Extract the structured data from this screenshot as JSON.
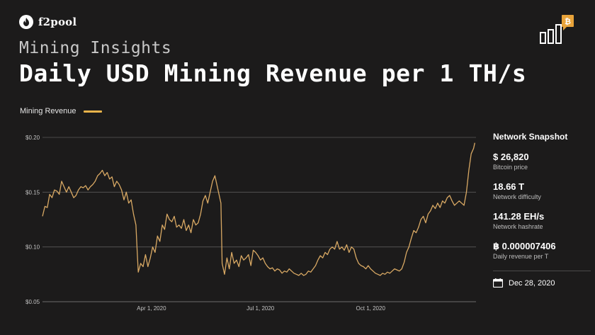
{
  "brand": {
    "name": "f2pool",
    "logo_icon": "flame-logo-icon"
  },
  "header": {
    "subtitle": "Mining Insights",
    "title": "Daily USD Mining Revenue per 1 TH/s",
    "corner_icon": "bar-chart-bitcoin-icon"
  },
  "colors": {
    "background": "#1c1b1b",
    "line": "#d9a964",
    "legend": "#e8b34a",
    "grid": "#5a5a5a"
  },
  "snapshot": {
    "heading": "Network Snapshot",
    "stats": [
      {
        "value": "$ 26,820",
        "label": "Bitcoin price"
      },
      {
        "value": "18.66 T",
        "label": "Network difficulty"
      },
      {
        "value": "141.28 EH/s",
        "label": "Network hashrate"
      },
      {
        "value": "฿ 0.000007406",
        "label": "Daily revenue per T"
      }
    ],
    "date": "Dec 28, 2020",
    "date_icon": "calendar-icon"
  },
  "chart_data": {
    "type": "line",
    "series": [
      {
        "name": "Mining Revenue"
      }
    ],
    "ylim": [
      0.05,
      0.2
    ],
    "y_ticks": [
      0.05,
      0.1,
      0.15,
      0.2
    ],
    "y_tick_labels": [
      "$0.05",
      "$0.10",
      "$0.15",
      "$0.20"
    ],
    "x_tick_labels": [
      "Apr 1, 2020",
      "Jul 1, 2020",
      "Oct 1, 2020"
    ],
    "x_tick_days": [
      91,
      182,
      274
    ],
    "x_range_days": [
      0,
      362
    ],
    "grid": "horizontal",
    "legend": "top-left",
    "points": [
      [
        0,
        0.128
      ],
      [
        2,
        0.137
      ],
      [
        4,
        0.136
      ],
      [
        6,
        0.148
      ],
      [
        8,
        0.145
      ],
      [
        10,
        0.152
      ],
      [
        12,
        0.151
      ],
      [
        14,
        0.148
      ],
      [
        16,
        0.16
      ],
      [
        18,
        0.155
      ],
      [
        20,
        0.15
      ],
      [
        22,
        0.155
      ],
      [
        24,
        0.15
      ],
      [
        26,
        0.145
      ],
      [
        28,
        0.147
      ],
      [
        30,
        0.152
      ],
      [
        32,
        0.155
      ],
      [
        34,
        0.154
      ],
      [
        36,
        0.156
      ],
      [
        38,
        0.152
      ],
      [
        40,
        0.155
      ],
      [
        42,
        0.157
      ],
      [
        44,
        0.16
      ],
      [
        46,
        0.165
      ],
      [
        48,
        0.167
      ],
      [
        50,
        0.17
      ],
      [
        52,
        0.165
      ],
      [
        54,
        0.168
      ],
      [
        56,
        0.162
      ],
      [
        58,
        0.164
      ],
      [
        60,
        0.155
      ],
      [
        62,
        0.16
      ],
      [
        64,
        0.157
      ],
      [
        66,
        0.152
      ],
      [
        68,
        0.143
      ],
      [
        70,
        0.15
      ],
      [
        72,
        0.14
      ],
      [
        74,
        0.143
      ],
      [
        76,
        0.13
      ],
      [
        78,
        0.12
      ],
      [
        79,
        0.097
      ],
      [
        80,
        0.077
      ],
      [
        82,
        0.085
      ],
      [
        84,
        0.082
      ],
      [
        86,
        0.093
      ],
      [
        88,
        0.082
      ],
      [
        90,
        0.09
      ],
      [
        92,
        0.1
      ],
      [
        94,
        0.095
      ],
      [
        96,
        0.11
      ],
      [
        98,
        0.105
      ],
      [
        100,
        0.12
      ],
      [
        102,
        0.116
      ],
      [
        104,
        0.13
      ],
      [
        106,
        0.125
      ],
      [
        108,
        0.123
      ],
      [
        110,
        0.128
      ],
      [
        112,
        0.118
      ],
      [
        114,
        0.12
      ],
      [
        116,
        0.117
      ],
      [
        118,
        0.125
      ],
      [
        120,
        0.115
      ],
      [
        122,
        0.12
      ],
      [
        124,
        0.113
      ],
      [
        126,
        0.125
      ],
      [
        128,
        0.12
      ],
      [
        130,
        0.122
      ],
      [
        132,
        0.13
      ],
      [
        134,
        0.142
      ],
      [
        136,
        0.147
      ],
      [
        138,
        0.14
      ],
      [
        140,
        0.15
      ],
      [
        142,
        0.16
      ],
      [
        144,
        0.165
      ],
      [
        146,
        0.155
      ],
      [
        148,
        0.145
      ],
      [
        149,
        0.14
      ],
      [
        150,
        0.085
      ],
      [
        152,
        0.075
      ],
      [
        154,
        0.09
      ],
      [
        156,
        0.08
      ],
      [
        158,
        0.095
      ],
      [
        160,
        0.085
      ],
      [
        162,
        0.088
      ],
      [
        164,
        0.082
      ],
      [
        166,
        0.092
      ],
      [
        168,
        0.088
      ],
      [
        170,
        0.09
      ],
      [
        172,
        0.093
      ],
      [
        174,
        0.083
      ],
      [
        176,
        0.097
      ],
      [
        178,
        0.095
      ],
      [
        180,
        0.092
      ],
      [
        182,
        0.088
      ],
      [
        184,
        0.09
      ],
      [
        186,
        0.085
      ],
      [
        188,
        0.082
      ],
      [
        190,
        0.08
      ],
      [
        192,
        0.081
      ],
      [
        194,
        0.078
      ],
      [
        196,
        0.08
      ],
      [
        198,
        0.079
      ],
      [
        200,
        0.076
      ],
      [
        202,
        0.078
      ],
      [
        204,
        0.077
      ],
      [
        206,
        0.08
      ],
      [
        208,
        0.078
      ],
      [
        210,
        0.076
      ],
      [
        212,
        0.075
      ],
      [
        214,
        0.074
      ],
      [
        216,
        0.076
      ],
      [
        218,
        0.074
      ],
      [
        220,
        0.075
      ],
      [
        222,
        0.078
      ],
      [
        224,
        0.077
      ],
      [
        226,
        0.08
      ],
      [
        228,
        0.083
      ],
      [
        230,
        0.088
      ],
      [
        232,
        0.092
      ],
      [
        234,
        0.09
      ],
      [
        236,
        0.095
      ],
      [
        238,
        0.093
      ],
      [
        240,
        0.098
      ],
      [
        242,
        0.1
      ],
      [
        244,
        0.098
      ],
      [
        246,
        0.105
      ],
      [
        248,
        0.098
      ],
      [
        250,
        0.1
      ],
      [
        252,
        0.097
      ],
      [
        254,
        0.102
      ],
      [
        256,
        0.095
      ],
      [
        258,
        0.1
      ],
      [
        260,
        0.098
      ],
      [
        262,
        0.09
      ],
      [
        264,
        0.085
      ],
      [
        266,
        0.083
      ],
      [
        268,
        0.082
      ],
      [
        270,
        0.08
      ],
      [
        272,
        0.083
      ],
      [
        274,
        0.08
      ],
      [
        276,
        0.078
      ],
      [
        278,
        0.076
      ],
      [
        280,
        0.075
      ],
      [
        282,
        0.074
      ],
      [
        284,
        0.076
      ],
      [
        286,
        0.075
      ],
      [
        288,
        0.077
      ],
      [
        290,
        0.076
      ],
      [
        292,
        0.078
      ],
      [
        294,
        0.08
      ],
      [
        296,
        0.079
      ],
      [
        298,
        0.078
      ],
      [
        300,
        0.08
      ],
      [
        302,
        0.086
      ],
      [
        304,
        0.095
      ],
      [
        306,
        0.1
      ],
      [
        308,
        0.108
      ],
      [
        310,
        0.115
      ],
      [
        312,
        0.113
      ],
      [
        314,
        0.118
      ],
      [
        316,
        0.125
      ],
      [
        318,
        0.128
      ],
      [
        320,
        0.122
      ],
      [
        322,
        0.13
      ],
      [
        324,
        0.133
      ],
      [
        326,
        0.138
      ],
      [
        328,
        0.135
      ],
      [
        330,
        0.14
      ],
      [
        332,
        0.136
      ],
      [
        334,
        0.142
      ],
      [
        336,
        0.14
      ],
      [
        338,
        0.145
      ],
      [
        340,
        0.147
      ],
      [
        342,
        0.142
      ],
      [
        344,
        0.138
      ],
      [
        346,
        0.14
      ],
      [
        348,
        0.142
      ],
      [
        350,
        0.14
      ],
      [
        352,
        0.138
      ],
      [
        354,
        0.15
      ],
      [
        356,
        0.17
      ],
      [
        358,
        0.185
      ],
      [
        360,
        0.19
      ],
      [
        361,
        0.195
      ]
    ]
  }
}
